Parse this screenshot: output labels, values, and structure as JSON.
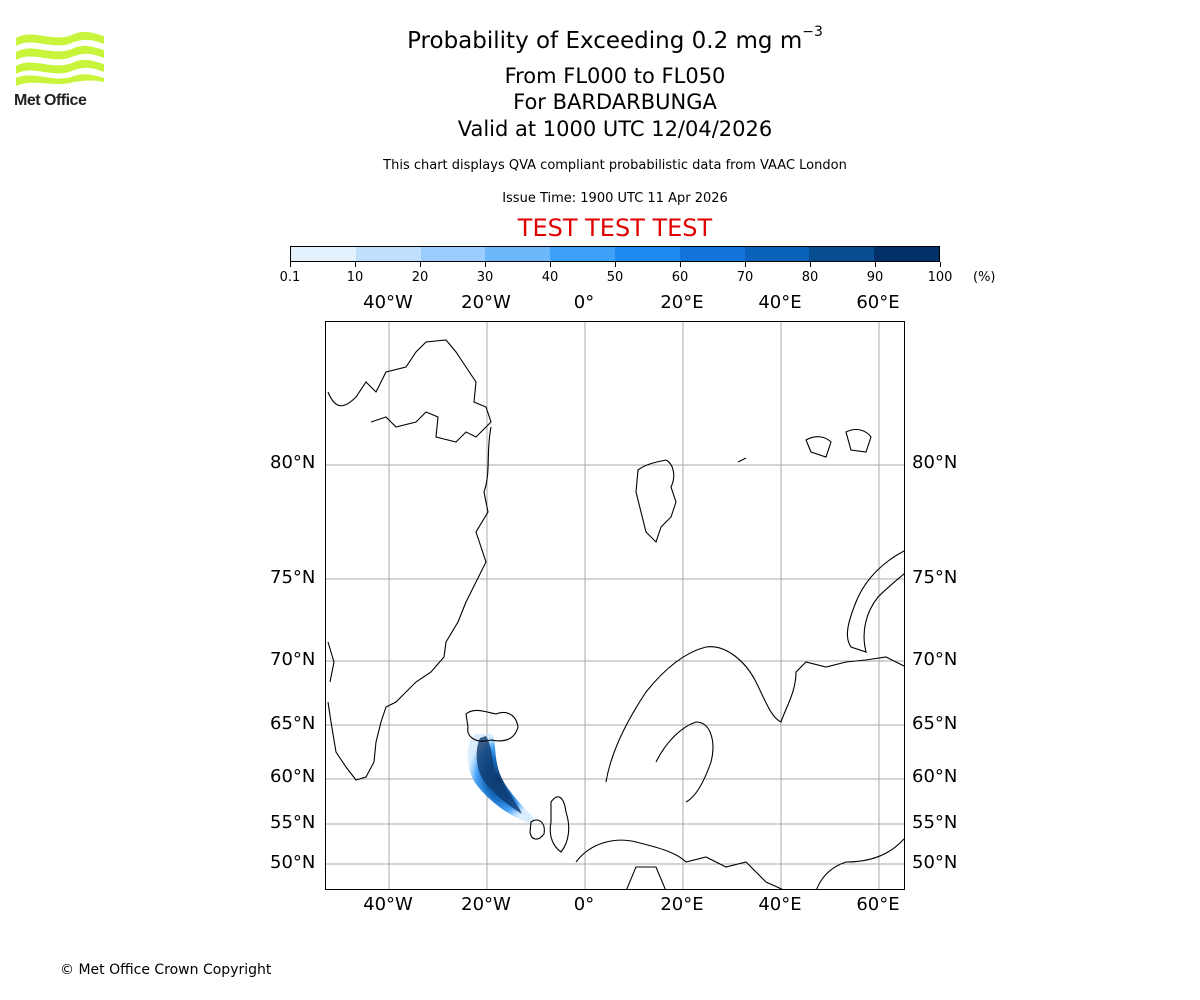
{
  "logo": {
    "text": "Met Office",
    "color": "#c8f53c"
  },
  "header": {
    "title": "Probability of Exceeding 0.2 mg m",
    "title_superscript": "−3",
    "flight_levels": "From FL000 to FL050",
    "volcano": "For BARDARBUNGA",
    "valid_time": "Valid at 1000 UTC 12/04/2026",
    "description": "This chart displays QVA compliant probabilistic data from VAAC London",
    "issue_time": "Issue Time: 1900 UTC 11 Apr 2026",
    "test_banner": "TEST TEST TEST"
  },
  "colorbar": {
    "ticks": [
      "0.1",
      "10",
      "20",
      "30",
      "40",
      "50",
      "60",
      "70",
      "80",
      "90",
      "100"
    ],
    "unit": "(%)",
    "colors": [
      "#e3f1fd",
      "#bfe0fd",
      "#9acdfd",
      "#6db8fb",
      "#3fa0f7",
      "#1f8aef",
      "#1274d8",
      "#0a62bb",
      "#064d92",
      "#033066"
    ]
  },
  "map": {
    "lon_labels": [
      "40°W",
      "20°W",
      "0°",
      "20°E",
      "40°E",
      "60°E"
    ],
    "lat_labels": [
      "80°N",
      "75°N",
      "70°N",
      "65°N",
      "60°N",
      "55°N",
      "50°N"
    ],
    "gridline_color": "#aaaaaa",
    "plume": {
      "source": "BARDARBUNGA",
      "direction": "south-southeast from Iceland toward west of Scotland",
      "max_probability_band": "90-100"
    }
  },
  "chart_data": {
    "type": "heatmap",
    "title": "Probability of Exceeding 0.2 mg m−3",
    "subtitle": [
      "From FL000 to FL050",
      "For BARDARBUNGA",
      "Valid at 1000 UTC 12/04/2026"
    ],
    "colorbar_bounds": [
      0.1,
      10,
      20,
      30,
      40,
      50,
      60,
      70,
      80,
      90,
      100
    ],
    "colorbar_unit": "%",
    "x_ticks": [
      "40°W",
      "20°W",
      "0°",
      "20°E",
      "40°E",
      "60°E"
    ],
    "y_ticks": [
      "80°N",
      "75°N",
      "70°N",
      "65°N",
      "60°N",
      "55°N",
      "50°N"
    ],
    "grid": true,
    "plume_extent": {
      "lat_range": [
        55,
        64.5
      ],
      "lon_range": [
        -25,
        -10
      ]
    }
  },
  "footer": {
    "copyright": "© Met Office Crown Copyright"
  }
}
